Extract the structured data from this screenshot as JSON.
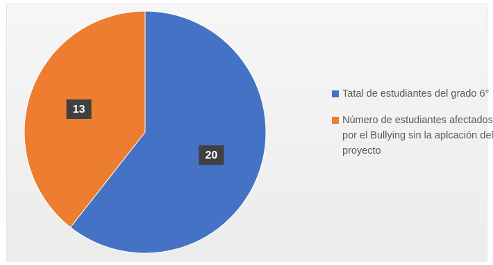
{
  "chart_data": {
    "type": "pie",
    "title": "",
    "slices": [
      {
        "name": "Tatal de estudiantes del grado 6°",
        "value": 20,
        "label": "20",
        "color": "#4472c4"
      },
      {
        "name": "Número de estudiantes afectados por el Bullying sin la aplcación del proyecto",
        "value": 13,
        "label": "13",
        "color": "#ed7d31"
      }
    ],
    "start_angle_deg": 0,
    "direction": "clockwise",
    "legend_position": "right"
  },
  "colors": {
    "background": "#f0f0f0",
    "label_box": "#404040",
    "label_text": "#ffffff",
    "legend_text": "#595959"
  }
}
